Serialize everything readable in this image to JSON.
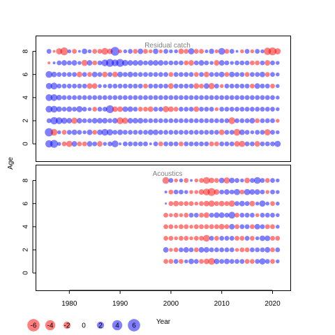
{
  "chart_data": {
    "type": "scatter",
    "subtype": "bubble-residual-plot",
    "xlabel": "Year",
    "ylabel": "Age",
    "x_ticks": [
      1980,
      1990,
      2000,
      2010,
      2020
    ],
    "y_ticks": [
      0,
      2,
      4,
      6,
      8
    ],
    "xlim": [
      1973.5,
      2023.5
    ],
    "ylim": [
      -1.5,
      9.3
    ],
    "colors": {
      "positive": "#0000ff",
      "negative": "#ff0000",
      "alpha": 0.5,
      "label_color": "#808080"
    },
    "size_legend": [
      {
        "label": "-6",
        "value": -6
      },
      {
        "label": "-4",
        "value": -4
      },
      {
        "label": "-2",
        "value": -2
      },
      {
        "label": "0",
        "value": 0
      },
      {
        "label": "2",
        "value": 2
      },
      {
        "label": "4",
        "value": 4
      },
      {
        "label": "6",
        "value": 6
      }
    ],
    "panels": [
      {
        "title": "Residual catch",
        "years": [
          1976,
          2021
        ],
        "ages": [
          0,
          8
        ],
        "residuals": {
          "8": [
            1.5,
            -0.5,
            -2.5,
            -4,
            1,
            -1.5,
            0.5,
            2,
            1,
            -1.5,
            -1.5,
            -3,
            -2,
            5,
            -1,
            1,
            1.5,
            -1.5,
            2,
            -1.5,
            -1,
            2,
            -1,
            1.5,
            1,
            1,
            -2,
            -1.5,
            2.5,
            -1.5,
            -1.5,
            0.8,
            1.8,
            -1,
            3,
            -1.5,
            1.5,
            0.5,
            -1,
            1.5,
            -1,
            1.5,
            1,
            -3.5,
            -4,
            -2.5
          ],
          "7": [
            -0.5,
            0.5,
            1.5,
            2,
            1.5,
            2,
            1,
            -2.5,
            2,
            -1.5,
            1.5,
            3,
            4,
            3,
            4,
            2.5,
            2,
            2,
            2,
            1.5,
            2,
            2,
            2,
            1.5,
            1.5,
            1.5,
            1.5,
            -1.5,
            -2,
            1.5,
            2,
            1.5,
            1,
            -2,
            2,
            1.5,
            1,
            1.5,
            1.5,
            1.5,
            -1.5,
            -1.5,
            1.5,
            -2,
            1.5,
            1
          ],
          "6": [
            3,
            2,
            1.5,
            1.5,
            1.5,
            1.5,
            -2,
            1.5,
            -1.5,
            2,
            1.5,
            -2,
            1.5,
            -2,
            2,
            1.5,
            2,
            1.5,
            1.5,
            1.5,
            1.5,
            1.5,
            1.5,
            1.5,
            -1.5,
            1.5,
            1.5,
            1.5,
            1.5,
            -1.5,
            1.5,
            -2,
            1.5,
            1.5,
            2,
            -1.5,
            2,
            1.5,
            1.5,
            -1.5,
            1.5,
            1.5,
            2,
            -1.5,
            1.5,
            1
          ],
          "5": [
            2.5,
            3,
            1.5,
            1.5,
            1.5,
            1.5,
            1.5,
            1.5,
            -2,
            -2,
            1,
            1,
            1.5,
            1.5,
            1.5,
            1.5,
            1.5,
            1.5,
            1.5,
            -1.5,
            1.5,
            1.5,
            1.5,
            1.5,
            -2,
            1.5,
            1.5,
            1.5,
            1.5,
            -2,
            -1.5,
            2,
            -2.5,
            1.5,
            -1,
            1.5,
            1.5,
            1.5,
            1.5,
            1.5,
            -1.5,
            2,
            1.5,
            1.5,
            -1.5,
            1
          ],
          "4": [
            3,
            3,
            2,
            1.5,
            1.5,
            1.5,
            1.5,
            1.5,
            1.5,
            1.5,
            1.5,
            1.5,
            1.5,
            1.5,
            1.5,
            1.5,
            1.5,
            1.5,
            1.5,
            1.5,
            1.5,
            1.5,
            1.5,
            1.5,
            1.5,
            1.5,
            1.5,
            1.5,
            1.5,
            1.5,
            1.5,
            1.5,
            1.5,
            1.5,
            1.5,
            1.5,
            1.5,
            1.5,
            1.5,
            1.5,
            1.5,
            1.5,
            1.5,
            1.5,
            1.5,
            1
          ],
          "3": [
            3,
            3,
            2,
            1.5,
            2,
            1.5,
            2.5,
            1.5,
            1,
            -1.5,
            1.5,
            1.5,
            4,
            -2,
            -2,
            2,
            2,
            1.5,
            -1.5,
            -1.5,
            -2,
            1.5,
            1.5,
            -2.5,
            -2,
            -1.5,
            1.5,
            1.5,
            1.5,
            -2,
            1.5,
            1.5,
            1.5,
            -1,
            1.5,
            1.5,
            1.5,
            1.5,
            1.5,
            1.5,
            1.5,
            1.5,
            1.5,
            1.5,
            1.5,
            1
          ],
          "2": [
            1.5,
            3.5,
            3,
            2.5,
            2,
            -2.5,
            2,
            1.5,
            1.5,
            2,
            2,
            2,
            1.5,
            2,
            -3,
            -2.5,
            2,
            2,
            2,
            1.5,
            1.5,
            1.5,
            1.5,
            1.5,
            1.5,
            1.5,
            1.5,
            1.5,
            1.5,
            1.5,
            1.5,
            1.5,
            1.5,
            1.5,
            1.5,
            1.5,
            -3,
            1.5,
            1.5,
            1.5,
            2,
            -1.5,
            1.5,
            1.5,
            1.5,
            -1
          ],
          "1": [
            4.5,
            -3,
            1,
            -1.5,
            1.5,
            2,
            1.5,
            1,
            2,
            -1.5,
            2,
            3,
            2.5,
            1.5,
            2,
            1.5,
            1.5,
            1.5,
            1.5,
            1.5,
            2,
            2,
            1.5,
            1.5,
            1.5,
            1.5,
            1.5,
            1.5,
            1.5,
            1.5,
            1.5,
            1.5,
            1.5,
            1.5,
            -2,
            1.5,
            1.5,
            -3,
            2,
            1.5,
            1,
            1.5,
            1.5,
            -2.5,
            1.5,
            1
          ],
          "0": [
            3.5,
            4,
            1,
            -1.5,
            -2.5,
            2,
            -1.5,
            -1.5,
            2,
            1.5,
            -2,
            1,
            1.5,
            3,
            0.5,
            1.5,
            1.5,
            1.5,
            1.5,
            1.5,
            0.5,
            1.5,
            -1.5,
            1.5,
            1.5,
            1.5,
            -1.5,
            1.5,
            1.5,
            1.5,
            1.5,
            1.5,
            -1.5,
            -1.5,
            1.5,
            1.5,
            1.5,
            -2,
            -2.5,
            1.5,
            1.5,
            -2,
            1.5,
            1.5,
            1.5,
            2.5
          ]
        }
      },
      {
        "title": "Acoustics",
        "years": [
          1999,
          2021
        ],
        "ages": [
          1,
          8
        ],
        "residuals": {
          "8": [
            -3,
            1.5,
            -1,
            1,
            -1.5,
            0.5,
            -1,
            -1.5,
            -3,
            -2,
            -1.5,
            2,
            -2.5,
            2,
            1.5,
            1,
            -2,
            1.5,
            3,
            1.5,
            -1.5,
            1.5,
            1
          ],
          "7": [
            0.5,
            -1.5,
            1.5,
            1.5,
            1,
            -1,
            -1,
            -2,
            -3,
            -4,
            -2,
            1.5,
            2,
            1.5,
            2.5,
            -1.5,
            2.5,
            2,
            2,
            1.5,
            -1,
            1.5,
            1
          ],
          "6": [
            0.3,
            -1.5,
            -2,
            -1.5,
            -1.5,
            -1.5,
            -1,
            -1.5,
            -2,
            -2.5,
            -1.5,
            -2,
            -1.5,
            -2.5,
            1.5,
            2,
            1.5,
            -2,
            1,
            2.5,
            1,
            -1.5,
            1
          ],
          "5": [
            -1.5,
            -1,
            -1.5,
            -1,
            -1.5,
            1.5,
            1.5,
            -1.5,
            -2,
            1.5,
            2,
            2,
            1.5,
            3,
            -1.5,
            1.5,
            1.5,
            1.5,
            -1,
            1.5,
            1.5,
            1.5,
            1
          ],
          "4": [
            -1.5,
            -1.5,
            -1,
            -1.5,
            -1.5,
            -1,
            -1.5,
            -1.5,
            -1.5,
            -1.5,
            -1.5,
            -2,
            -1.5,
            2,
            -1.5,
            1.5,
            1.5,
            -1.5,
            2,
            1.5,
            -1.5,
            -1.5,
            1
          ],
          "3": [
            -1.5,
            -1.5,
            -1,
            -1.5,
            -1.5,
            -1,
            -1.5,
            -1.5,
            -3,
            1.5,
            -1.5,
            1.5,
            1.5,
            1.5,
            -1.5,
            -1.5,
            1.5,
            -1.5,
            1,
            2,
            2,
            -1.5,
            -1.5
          ],
          "2": [
            2,
            -1,
            -1.5,
            1.5,
            2,
            1.5,
            -1.5,
            2,
            2,
            1.5,
            1.5,
            1.5,
            1.5,
            1.5,
            -1,
            -1.5,
            -1.5,
            1.5,
            1.5,
            1.5,
            2,
            -1.5,
            1.5
          ],
          "1": [
            -1.5,
            -1.5,
            1.5,
            -1.5,
            1,
            2,
            1.5,
            -1.5,
            -2,
            -3,
            2,
            1.5,
            2,
            1.5,
            1.5,
            1.5,
            -1.5,
            -1.5,
            1.5,
            2.5,
            1.5,
            -1.5,
            1
          ]
        }
      }
    ]
  }
}
